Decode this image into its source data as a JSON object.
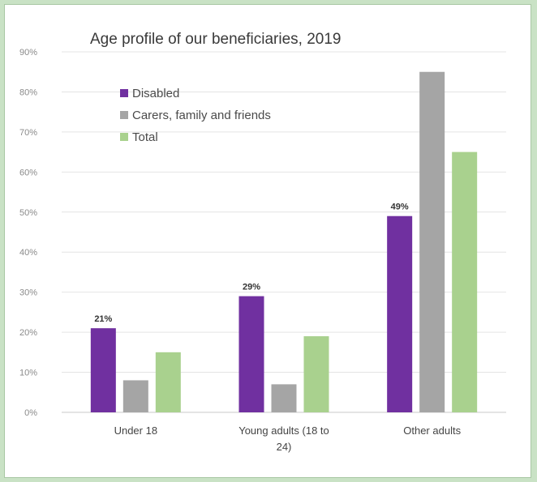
{
  "chart_data": {
    "type": "bar",
    "title": "Age profile of our beneficiaries, 2019",
    "categories": [
      "Under 18",
      "Young adults (18 to 24)",
      "Other adults"
    ],
    "category_lines": [
      [
        "Under 18"
      ],
      [
        "Young adults (18 to",
        "24)"
      ],
      [
        "Other adults"
      ]
    ],
    "series": [
      {
        "name": "Disabled",
        "color": "#7030a0",
        "values": [
          21,
          29,
          49
        ],
        "data_labels": [
          "21%",
          "29%",
          "49%"
        ]
      },
      {
        "name": "Carers, family and friends",
        "color": "#a5a5a5",
        "values": [
          8,
          7,
          85
        ]
      },
      {
        "name": "Total",
        "color": "#a9d18e",
        "values": [
          15,
          19,
          65
        ]
      }
    ],
    "ylim": [
      0,
      90
    ],
    "yticks": [
      "0%",
      "10%",
      "20%",
      "30%",
      "40%",
      "50%",
      "60%",
      "70%",
      "80%",
      "90%"
    ],
    "xlabel": "",
    "ylabel": "",
    "grid": true,
    "legend_position": "top-left"
  }
}
